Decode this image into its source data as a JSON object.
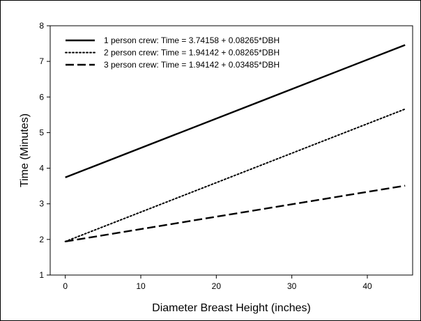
{
  "chart_data": {
    "type": "line",
    "title": "",
    "xlabel": "Diameter Breast Height (inches)",
    "ylabel": "Time (Minutes)",
    "xlim": [
      -2,
      46
    ],
    "ylim": [
      1,
      8
    ],
    "x_ticks": [
      0,
      10,
      20,
      30,
      40
    ],
    "y_ticks": [
      1,
      2,
      3,
      4,
      5,
      6,
      7,
      8
    ],
    "grid": false,
    "legend_position": "top-left",
    "series": [
      {
        "name": "1 person crew: Time = 3.74158 + 0.08265*DBH",
        "x": [
          0,
          45
        ],
        "y": [
          3.74158,
          7.46083
        ],
        "style": "solid",
        "color": "#000000"
      },
      {
        "name": "2 person crew: Time = 1.94142 + 0.08265*DBH",
        "x": [
          0,
          45
        ],
        "y": [
          1.94142,
          5.66067
        ],
        "style": "dotted",
        "color": "#000000"
      },
      {
        "name": "3 person crew: Time = 1.94142 + 0.03485*DBH",
        "x": [
          0,
          45
        ],
        "y": [
          1.94142,
          3.50967
        ],
        "style": "dashed",
        "color": "#000000"
      }
    ]
  }
}
